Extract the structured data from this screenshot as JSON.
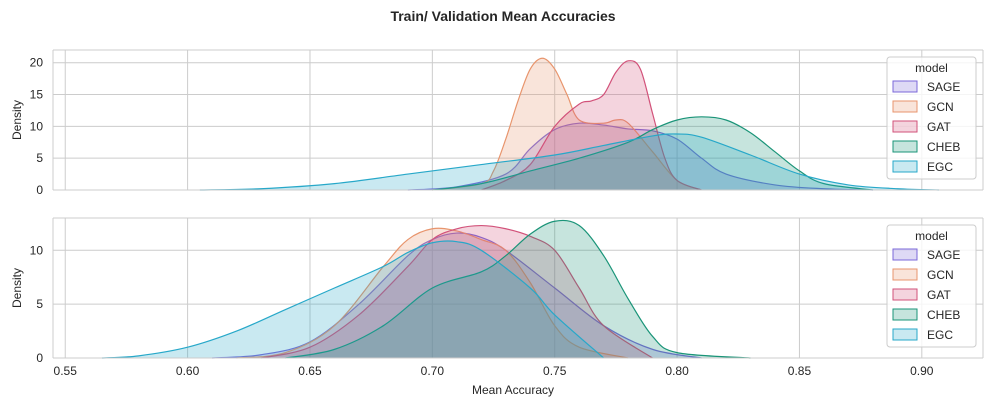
{
  "figure": {
    "title": "Train/ Validation Mean Accuracies"
  },
  "chart_data": [
    {
      "type": "area",
      "kind": "kde",
      "panel": "top",
      "xlabel": "",
      "ylabel": "Density",
      "xlim": [
        0.545,
        0.925
      ],
      "ylim": [
        0,
        22
      ],
      "yticks": [
        0,
        5,
        10,
        15,
        20
      ],
      "xticks": [
        0.55,
        0.6,
        0.65,
        0.7,
        0.75,
        0.8,
        0.85,
        0.9
      ],
      "grid": true,
      "legend": {
        "title": "model",
        "position": "top-right"
      },
      "series": [
        {
          "name": "SAGE",
          "color": "#7b68d9",
          "x": [
            0.69,
            0.71,
            0.73,
            0.74,
            0.75,
            0.76,
            0.77,
            0.78,
            0.79,
            0.8,
            0.81,
            0.82,
            0.84,
            0.86,
            0.88
          ],
          "y": [
            0,
            0.5,
            2.5,
            6.5,
            9.5,
            10.5,
            10.2,
            9.6,
            9.3,
            8.0,
            5.0,
            2.5,
            0.8,
            0.2,
            0
          ]
        },
        {
          "name": "GCN",
          "color": "#e8956d",
          "x": [
            0.7,
            0.72,
            0.725,
            0.73,
            0.735,
            0.74,
            0.745,
            0.75,
            0.755,
            0.76,
            0.77,
            0.775,
            0.78,
            0.79,
            0.8,
            0.81
          ],
          "y": [
            0,
            1.0,
            3.0,
            8.0,
            14.0,
            19.0,
            20.7,
            19.0,
            15.0,
            11.0,
            10.5,
            11.0,
            10.5,
            6.0,
            1.5,
            0
          ]
        },
        {
          "name": "GAT",
          "color": "#d2527a",
          "x": [
            0.72,
            0.73,
            0.74,
            0.75,
            0.76,
            0.765,
            0.77,
            0.775,
            0.78,
            0.785,
            0.79,
            0.795,
            0.8,
            0.81
          ],
          "y": [
            0,
            1.5,
            4.0,
            10.0,
            13.5,
            14.0,
            15.0,
            18.5,
            20.3,
            19.0,
            12.0,
            5.0,
            1.5,
            0
          ]
        },
        {
          "name": "CHEB",
          "color": "#1a9478",
          "x": [
            0.7,
            0.72,
            0.74,
            0.76,
            0.78,
            0.79,
            0.8,
            0.81,
            0.82,
            0.83,
            0.84,
            0.85,
            0.86,
            0.88
          ],
          "y": [
            0,
            1.0,
            3.0,
            5.0,
            7.5,
            9.5,
            11.0,
            11.5,
            11.0,
            9.0,
            6.0,
            3.0,
            1.0,
            0
          ]
        },
        {
          "name": "EGC",
          "color": "#27a8c9",
          "x": [
            0.605,
            0.63,
            0.66,
            0.69,
            0.72,
            0.75,
            0.77,
            0.79,
            0.8,
            0.81,
            0.83,
            0.85,
            0.87,
            0.89,
            0.907
          ],
          "y": [
            0,
            0.2,
            1.0,
            2.5,
            4.0,
            5.5,
            7.0,
            8.5,
            8.8,
            8.3,
            5.5,
            2.5,
            0.8,
            0.2,
            0
          ]
        }
      ]
    },
    {
      "type": "area",
      "kind": "kde",
      "panel": "bottom",
      "xlabel": "Mean Accuracy",
      "ylabel": "Density",
      "xlim": [
        0.545,
        0.925
      ],
      "ylim": [
        0,
        13
      ],
      "yticks": [
        0,
        5,
        10
      ],
      "xticks": [
        0.55,
        0.6,
        0.65,
        0.7,
        0.75,
        0.8,
        0.85,
        0.9
      ],
      "grid": true,
      "legend": {
        "title": "model",
        "position": "top-right"
      },
      "series": [
        {
          "name": "SAGE",
          "color": "#7b68d9",
          "x": [
            0.61,
            0.63,
            0.65,
            0.67,
            0.69,
            0.7,
            0.71,
            0.72,
            0.73,
            0.75,
            0.77,
            0.79,
            0.81
          ],
          "y": [
            0,
            0.3,
            1.5,
            5.0,
            9.5,
            11.0,
            11.6,
            11.2,
            10.0,
            6.5,
            3.0,
            0.8,
            0
          ]
        },
        {
          "name": "GCN",
          "color": "#e8956d",
          "x": [
            0.62,
            0.64,
            0.66,
            0.68,
            0.69,
            0.7,
            0.71,
            0.72,
            0.73,
            0.74,
            0.75,
            0.76,
            0.78
          ],
          "y": [
            0,
            0.5,
            3.0,
            8.5,
            11.0,
            12.0,
            11.8,
            11.0,
            10.0,
            7.0,
            3.0,
            1.0,
            0
          ]
        },
        {
          "name": "GAT",
          "color": "#d2527a",
          "x": [
            0.63,
            0.65,
            0.67,
            0.69,
            0.7,
            0.71,
            0.72,
            0.73,
            0.74,
            0.75,
            0.76,
            0.77,
            0.79
          ],
          "y": [
            0,
            1.0,
            4.0,
            8.5,
            11.0,
            12.0,
            12.3,
            12.0,
            11.3,
            10.0,
            6.5,
            3.0,
            0
          ]
        },
        {
          "name": "CHEB",
          "color": "#1a9478",
          "x": [
            0.64,
            0.66,
            0.68,
            0.7,
            0.72,
            0.73,
            0.74,
            0.75,
            0.76,
            0.77,
            0.78,
            0.79,
            0.8,
            0.83
          ],
          "y": [
            0,
            0.8,
            3.0,
            6.5,
            8.0,
            9.5,
            11.5,
            12.7,
            12.3,
            9.5,
            5.5,
            2.0,
            0.5,
            0
          ]
        },
        {
          "name": "EGC",
          "color": "#27a8c9",
          "x": [
            0.565,
            0.58,
            0.6,
            0.62,
            0.64,
            0.66,
            0.68,
            0.69,
            0.7,
            0.71,
            0.72,
            0.74,
            0.75,
            0.77
          ],
          "y": [
            0,
            0.2,
            1.0,
            2.5,
            4.5,
            6.5,
            8.5,
            9.8,
            10.7,
            10.8,
            10.0,
            6.5,
            4.0,
            0
          ]
        }
      ]
    }
  ]
}
